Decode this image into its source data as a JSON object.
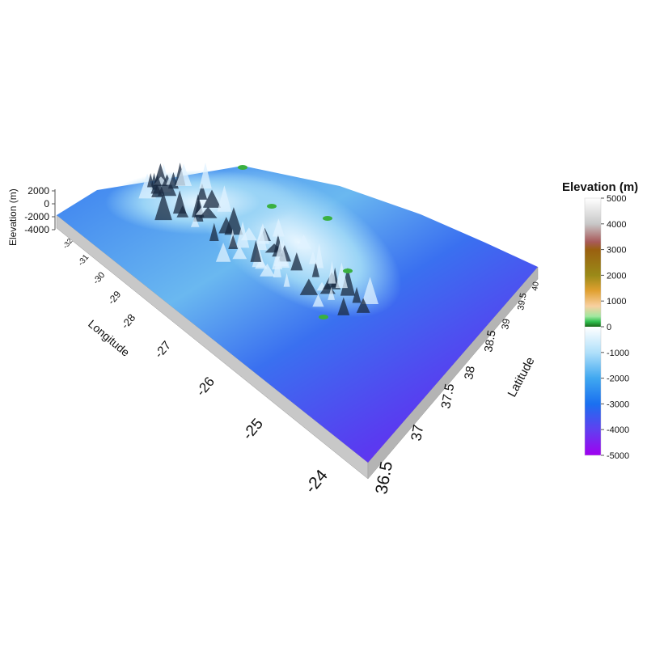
{
  "chart_data": {
    "type": "surface",
    "title": "",
    "xlabel": "Longitude",
    "ylabel": "Latitude",
    "zlabel": "Elevation (m)",
    "x_ticks": [
      "-32",
      "-31",
      "-30",
      "-29",
      "-28",
      "-27",
      "-26",
      "-25",
      "-24"
    ],
    "y_ticks": [
      "36.5",
      "37",
      "37.5",
      "38",
      "38.5",
      "39",
      "39.5",
      "40"
    ],
    "z_ticks": [
      "2000",
      "0",
      "-2000",
      "-4000"
    ],
    "xlim": [
      -32,
      -24
    ],
    "ylim": [
      36.5,
      40
    ],
    "colorbar": {
      "title": "Elevation (m)",
      "ticks": [
        "5000",
        "4000",
        "3000",
        "2000",
        "1000",
        "0",
        "-1000",
        "-2000",
        "-3000",
        "-4000",
        "-5000"
      ],
      "range": [
        -5000,
        5000
      ],
      "stops": [
        {
          "value": 5000,
          "color": "#ffffff"
        },
        {
          "value": 4000,
          "color": "#c8c8c8"
        },
        {
          "value": 3300,
          "color": "#a85a5a"
        },
        {
          "value": 3000,
          "color": "#9a6010"
        },
        {
          "value": 2000,
          "color": "#9a8a18"
        },
        {
          "value": 1400,
          "color": "#e0a030"
        },
        {
          "value": 800,
          "color": "#f8d0a0"
        },
        {
          "value": 400,
          "color": "#a0e8a0"
        },
        {
          "value": 200,
          "color": "#30c050"
        },
        {
          "value": 0,
          "color": "#1a6a1a"
        },
        {
          "value": -1,
          "color": "#ffffff"
        },
        {
          "value": -1000,
          "color": "#b0e0fa"
        },
        {
          "value": -2000,
          "color": "#40a8f0"
        },
        {
          "value": -3000,
          "color": "#1a70f0"
        },
        {
          "value": -4000,
          "color": "#6040f0"
        },
        {
          "value": -5000,
          "color": "#a000f0"
        }
      ]
    }
  }
}
